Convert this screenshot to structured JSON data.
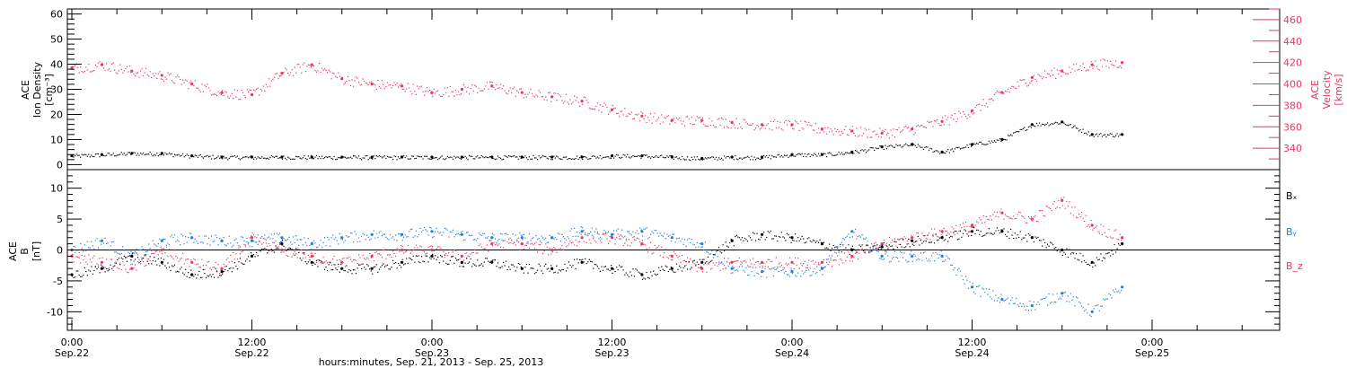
{
  "chart_data": [
    {
      "type": "scatter",
      "panel": "top",
      "ylabel_left": [
        "ACE",
        "Ion Density",
        "[cm⁻³]"
      ],
      "ylabel_right": [
        "ACE",
        "Velocity",
        "[km/s]"
      ],
      "ylim_left": [
        -2,
        62
      ],
      "yticks_left": [
        0,
        10,
        20,
        30,
        40,
        50,
        60
      ],
      "ylim_right": [
        320,
        470
      ],
      "yticks_right": [
        340,
        360,
        380,
        400,
        420,
        440,
        460
      ],
      "series": [
        {
          "color": "#000000",
          "axis": "left",
          "x": [
            0,
            2,
            4,
            6,
            8,
            10,
            12,
            14,
            16,
            18,
            20,
            22,
            24,
            26,
            28,
            30,
            32,
            34,
            36,
            38,
            40,
            42,
            44,
            46,
            48,
            50,
            52,
            54,
            56,
            58,
            60,
            62,
            64,
            66,
            68,
            70
          ],
          "values": [
            3.5,
            4,
            4.5,
            4.5,
            3.5,
            3,
            3,
            3,
            3,
            3,
            3,
            3,
            3,
            3,
            3,
            3,
            3,
            3,
            3.5,
            3.5,
            3,
            2.5,
            3,
            3,
            4,
            4,
            5,
            7,
            8,
            5,
            8,
            10,
            16,
            17,
            12,
            12
          ]
        },
        {
          "color": "#e8375f",
          "axis": "right",
          "x": [
            0,
            2,
            4,
            6,
            8,
            10,
            12,
            14,
            16,
            18,
            20,
            22,
            24,
            26,
            28,
            30,
            32,
            34,
            36,
            38,
            40,
            42,
            44,
            46,
            48,
            50,
            52,
            54,
            56,
            58,
            60,
            62,
            64,
            66,
            68,
            70
          ],
          "values": [
            415,
            418,
            412,
            408,
            400,
            392,
            390,
            410,
            418,
            405,
            400,
            398,
            392,
            395,
            398,
            392,
            388,
            384,
            376,
            370,
            366,
            366,
            364,
            362,
            362,
            358,
            356,
            354,
            358,
            365,
            375,
            392,
            406,
            412,
            418,
            420
          ]
        }
      ]
    },
    {
      "type": "scatter",
      "panel": "bottom",
      "ylabel": [
        "ACE",
        "B",
        "[nT]"
      ],
      "ylim": [
        -13,
        13
      ],
      "yticks": [
        -10,
        -5,
        0,
        5,
        10
      ],
      "zero_line": true,
      "legend": [
        "Bₓ",
        "Bᵧ",
        "B_z"
      ],
      "legend_colors": [
        "#000000",
        "#1e7fe0",
        "#e8375f"
      ],
      "legend_placement": "right",
      "series": [
        {
          "color": "#000000",
          "x": [
            0,
            2,
            4,
            6,
            8,
            10,
            12,
            14,
            16,
            18,
            20,
            22,
            24,
            26,
            28,
            30,
            32,
            34,
            36,
            38,
            40,
            42,
            44,
            46,
            48,
            50,
            52,
            54,
            56,
            58,
            60,
            62,
            64,
            66,
            68,
            70
          ],
          "values": [
            -4,
            -3,
            -1,
            -2,
            -4,
            -3.5,
            -1,
            1,
            -2,
            -3,
            -3,
            -2,
            -1,
            -2,
            -2,
            -3,
            -3,
            -2,
            -3,
            -4,
            -3,
            -2,
            1.5,
            2.5,
            2,
            1,
            0,
            0.5,
            1.5,
            2,
            3,
            3,
            2,
            0,
            -2,
            1
          ]
        },
        {
          "color": "#1e7fe0",
          "x": [
            0,
            2,
            4,
            6,
            8,
            10,
            12,
            14,
            16,
            18,
            20,
            22,
            24,
            26,
            28,
            30,
            32,
            34,
            36,
            38,
            40,
            42,
            44,
            46,
            48,
            50,
            52,
            54,
            56,
            58,
            60,
            62,
            64,
            66,
            68,
            70
          ],
          "values": [
            0,
            1.5,
            -1,
            1.5,
            2,
            1.5,
            1.5,
            2,
            1,
            2,
            2.5,
            2.5,
            3,
            2.5,
            2,
            2,
            2,
            3,
            2.5,
            3,
            2,
            1,
            -3,
            -3.5,
            -3.5,
            -3,
            3,
            -1,
            -1,
            -1,
            -6,
            -8,
            -9,
            -7,
            -10,
            -6
          ]
        },
        {
          "color": "#e8375f",
          "x": [
            0,
            2,
            4,
            6,
            8,
            10,
            12,
            14,
            16,
            18,
            20,
            22,
            24,
            26,
            28,
            30,
            32,
            34,
            36,
            38,
            40,
            42,
            44,
            46,
            48,
            50,
            52,
            54,
            56,
            58,
            60,
            62,
            64,
            66,
            68,
            70
          ],
          "values": [
            -1,
            -2,
            -3,
            0,
            -2,
            -3,
            2,
            0,
            -1,
            -2,
            -1,
            0,
            0,
            -1,
            1,
            1,
            0,
            2,
            2,
            1,
            -1,
            -3,
            -2,
            -2,
            -2,
            -2,
            -1,
            1,
            2,
            3,
            4,
            6,
            5,
            8,
            4,
            2
          ]
        }
      ]
    },
    {
      "xaxis": {
        "xlim": [
          -0.3,
          80.5
        ],
        "ticks": [
          {
            "x": 0,
            "label1": "0:00",
            "label2": "Sep.22"
          },
          {
            "x": 12,
            "label1": "12:00",
            "label2": "Sep.22"
          },
          {
            "x": 24,
            "label1": "0:00",
            "label2": "Sep.23"
          },
          {
            "x": 36,
            "label1": "12:00",
            "label2": "Sep.23"
          },
          {
            "x": 48,
            "label1": "0:00",
            "label2": "Sep.24"
          },
          {
            "x": 60,
            "label1": "12:00",
            "label2": "Sep.24"
          },
          {
            "x": 72,
            "label1": "0:00",
            "label2": "Sep.25"
          }
        ],
        "xlabel": "hours:minutes, Sep. 21, 2013 - Sep. 25, 2013"
      }
    }
  ]
}
